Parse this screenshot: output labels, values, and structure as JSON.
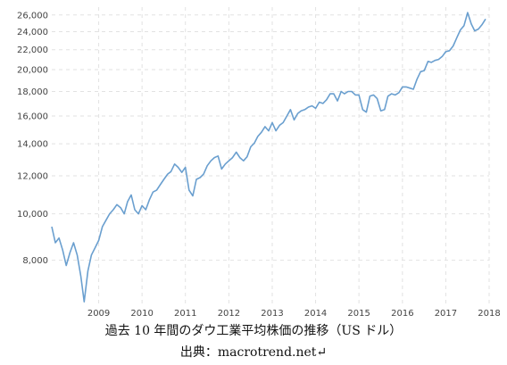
{
  "caption": {
    "title": "過去 10 年間のダウ工業平均株価の推移（US ドル）",
    "source": "出典：macrotrend.net↵"
  },
  "chart_data": {
    "type": "line",
    "title": "",
    "xlabel": "",
    "ylabel": "",
    "yscale": "log",
    "ylim": [
      6500,
      27000
    ],
    "xlim": [
      "2008-06-01",
      "2018-07-01"
    ],
    "grid": true,
    "line_color": "#6a9fcf",
    "y_ticks": [
      8000,
      10000,
      12000,
      14000,
      16000,
      18000,
      20000,
      22000,
      24000,
      26000
    ],
    "y_tick_labels": [
      "8,000",
      "10,000",
      "12,000",
      "14,000",
      "16,000",
      "18,000",
      "20,000",
      "22,000",
      "24,000",
      "26,000"
    ],
    "x_ticks": [
      "2009",
      "2010",
      "2011",
      "2012",
      "2013",
      "2014",
      "2015",
      "2016",
      "2017",
      "2018"
    ],
    "series": [
      {
        "name": "",
        "x": [
          "2008-06-01",
          "2008-07-01",
          "2008-08-01",
          "2008-09-01",
          "2008-10-01",
          "2008-11-01",
          "2008-12-01",
          "2009-01-01",
          "2009-02-01",
          "2009-03-01",
          "2009-04-01",
          "2009-05-01",
          "2009-06-01",
          "2009-07-01",
          "2009-08-01",
          "2009-09-01",
          "2009-10-01",
          "2009-11-01",
          "2009-12-01",
          "2010-01-01",
          "2010-02-01",
          "2010-03-01",
          "2010-04-01",
          "2010-05-01",
          "2010-06-01",
          "2010-07-01",
          "2010-08-01",
          "2010-09-01",
          "2010-10-01",
          "2010-11-01",
          "2010-12-01",
          "2011-01-01",
          "2011-02-01",
          "2011-03-01",
          "2011-04-01",
          "2011-05-01",
          "2011-06-01",
          "2011-07-01",
          "2011-08-01",
          "2011-09-01",
          "2011-10-01",
          "2011-11-01",
          "2011-12-01",
          "2012-01-01",
          "2012-02-01",
          "2012-03-01",
          "2012-04-01",
          "2012-05-01",
          "2012-06-01",
          "2012-07-01",
          "2012-08-01",
          "2012-09-01",
          "2012-10-01",
          "2012-11-01",
          "2012-12-01",
          "2013-01-01",
          "2013-02-01",
          "2013-03-01",
          "2013-04-01",
          "2013-05-01",
          "2013-06-01",
          "2013-07-01",
          "2013-08-01",
          "2013-09-01",
          "2013-10-01",
          "2013-11-01",
          "2013-12-01",
          "2014-01-01",
          "2014-02-01",
          "2014-03-01",
          "2014-04-01",
          "2014-05-01",
          "2014-06-01",
          "2014-07-01",
          "2014-08-01",
          "2014-09-01",
          "2014-10-01",
          "2014-11-01",
          "2014-12-01",
          "2015-01-01",
          "2015-02-01",
          "2015-03-01",
          "2015-04-01",
          "2015-05-01",
          "2015-06-01",
          "2015-07-01",
          "2015-08-01",
          "2015-09-01",
          "2015-10-01",
          "2015-11-01",
          "2015-12-01",
          "2016-01-01",
          "2016-02-01",
          "2016-03-01",
          "2016-04-01",
          "2016-05-01",
          "2016-06-01",
          "2016-07-01",
          "2016-08-01",
          "2016-09-01",
          "2016-10-01",
          "2016-11-01",
          "2016-12-01",
          "2017-01-01",
          "2017-02-01",
          "2017-03-01",
          "2017-04-01",
          "2017-05-01",
          "2017-06-01",
          "2017-07-01",
          "2017-08-01",
          "2017-09-01",
          "2017-10-01",
          "2017-11-01",
          "2017-12-01",
          "2018-01-01",
          "2018-02-01",
          "2018-03-01",
          "2018-04-01",
          "2018-05-01",
          "2018-06-01"
        ],
        "values": [
          9400,
          8700,
          8900,
          8400,
          7800,
          8300,
          8700,
          8200,
          7400,
          6550,
          7600,
          8200,
          8500,
          8800,
          9400,
          9700,
          10000,
          10200,
          10450,
          10300,
          10000,
          10600,
          10950,
          10200,
          10000,
          10400,
          10200,
          10700,
          11100,
          11200,
          11500,
          11800,
          12100,
          12250,
          12700,
          12500,
          12200,
          12500,
          11200,
          10900,
          11800,
          11900,
          12100,
          12600,
          12900,
          13100,
          13200,
          12400,
          12700,
          12900,
          13100,
          13450,
          13100,
          12900,
          13150,
          13800,
          14050,
          14500,
          14800,
          15200,
          14900,
          15500,
          14900,
          15300,
          15500,
          16000,
          16500,
          15700,
          16200,
          16400,
          16500,
          16700,
          16800,
          16600,
          17100,
          17000,
          17300,
          17800,
          17800,
          17200,
          18000,
          17800,
          18000,
          18000,
          17700,
          17700,
          16500,
          16300,
          17600,
          17700,
          17400,
          16400,
          16500,
          17600,
          17800,
          17700,
          17900,
          18400,
          18400,
          18300,
          18200,
          19100,
          19800,
          19900,
          20800,
          20700,
          20900,
          21000,
          21300,
          21800,
          21900,
          22400,
          23300,
          24200,
          24700,
          26300,
          24900,
          24100,
          24300,
          24800,
          25500
        ]
      }
    ]
  }
}
